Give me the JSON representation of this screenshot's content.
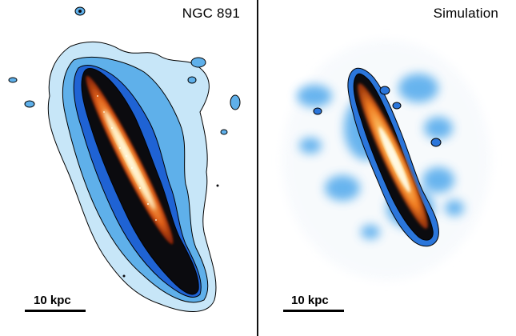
{
  "panels": {
    "left": {
      "label": "NGC 891",
      "scale_label": "10 kpc"
    },
    "right": {
      "label": "Simulation",
      "scale_label": "10 kpc"
    }
  },
  "colors": {
    "halo_outer": "#bfe4f7",
    "halo_mid": "#5aaee8",
    "halo_inner": "#1d5fd0",
    "core_dark": "#0a0a0a",
    "disk_orange": "#e8761a",
    "disk_bright": "#fff2c8",
    "contour": "#000000",
    "divider": "#111111"
  }
}
